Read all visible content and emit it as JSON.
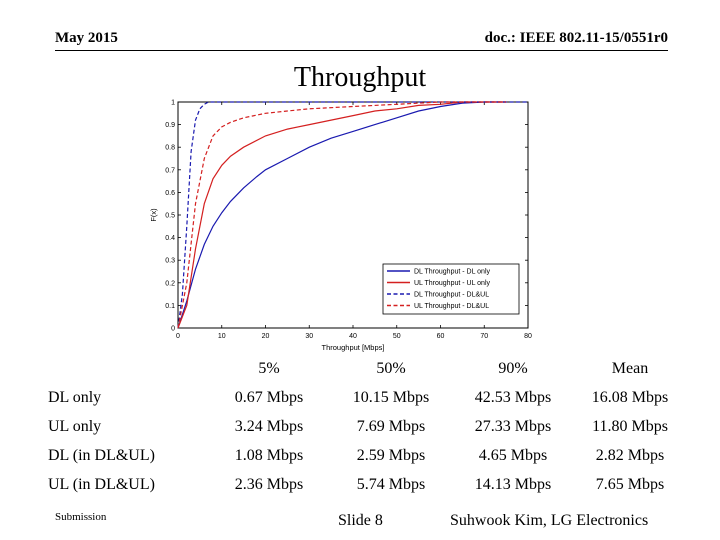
{
  "header": {
    "date": "May 2015",
    "doc": "doc.: IEEE 802.11-15/0551r0"
  },
  "title": "Throughput",
  "chart_data": {
    "type": "line",
    "xlabel": "Throughput [Mbps]",
    "ylabel": "F(x)",
    "xlim": [
      0,
      80
    ],
    "ylim": [
      0,
      1
    ],
    "xticks": [
      "0",
      "10",
      "20",
      "30",
      "40",
      "50",
      "60",
      "70",
      "80"
    ],
    "yticks": [
      "0",
      "0.1",
      "0.2",
      "0.3",
      "0.4",
      "0.5",
      "0.6",
      "0.7",
      "0.8",
      "0.9",
      "1"
    ],
    "grid": false,
    "legend_position": "bottom-right",
    "series": [
      {
        "name": "DL Throughput - DL only",
        "color": "#1a1ab0",
        "dash": "solid",
        "x": [
          0,
          2,
          4,
          6,
          8,
          10,
          12,
          15,
          18,
          20,
          25,
          30,
          35,
          40,
          45,
          50,
          55,
          60,
          65,
          70,
          75
        ],
        "y": [
          0,
          0.12,
          0.26,
          0.37,
          0.45,
          0.51,
          0.56,
          0.62,
          0.67,
          0.7,
          0.75,
          0.8,
          0.84,
          0.87,
          0.9,
          0.93,
          0.96,
          0.98,
          0.995,
          1,
          1
        ]
      },
      {
        "name": "UL Throughput - UL only",
        "color": "#d42020",
        "dash": "solid",
        "x": [
          0,
          2,
          4,
          6,
          8,
          10,
          12,
          15,
          20,
          25,
          30,
          35,
          40,
          45,
          50,
          55,
          60,
          65,
          70,
          75
        ],
        "y": [
          0,
          0.1,
          0.35,
          0.55,
          0.66,
          0.72,
          0.76,
          0.8,
          0.85,
          0.88,
          0.9,
          0.92,
          0.94,
          0.96,
          0.97,
          0.985,
          0.99,
          1,
          1,
          1
        ]
      },
      {
        "name": "DL Throughput - DL&UL",
        "color": "#1a1ab0",
        "dash": "dash",
        "x": [
          0,
          1,
          2,
          3,
          4,
          5,
          6,
          7,
          8,
          10,
          80
        ],
        "y": [
          0,
          0.15,
          0.45,
          0.78,
          0.92,
          0.97,
          0.99,
          1,
          1,
          1,
          1
        ]
      },
      {
        "name": "UL Throughput - DL&UL",
        "color": "#d42020",
        "dash": "dash",
        "x": [
          0,
          2,
          4,
          6,
          8,
          10,
          12,
          15,
          20,
          25,
          30,
          40,
          50,
          60,
          70,
          75
        ],
        "y": [
          0,
          0.2,
          0.55,
          0.75,
          0.85,
          0.89,
          0.91,
          0.93,
          0.95,
          0.96,
          0.97,
          0.98,
          0.99,
          1,
          1,
          1
        ]
      }
    ]
  },
  "table": {
    "headers": [
      "",
      "5%",
      "50%",
      "90%",
      "Mean"
    ],
    "rows": [
      {
        "label": "DL only",
        "values": [
          "0.67 Mbps",
          "10.15 Mbps",
          "42.53 Mbps",
          "16.08 Mbps"
        ]
      },
      {
        "label": "UL only",
        "values": [
          "3.24 Mbps",
          "7.69 Mbps",
          "27.33 Mbps",
          "11.80 Mbps"
        ]
      },
      {
        "label": "DL (in DL&UL)",
        "values": [
          "1.08 Mbps",
          "2.59 Mbps",
          "4.65 Mbps",
          "2.82 Mbps"
        ]
      },
      {
        "label": "UL (in DL&UL)",
        "values": [
          "2.36 Mbps",
          "5.74 Mbps",
          "14.13 Mbps",
          "7.65 Mbps"
        ]
      }
    ]
  },
  "footer": {
    "submission": "Submission",
    "slide": "Slide 8",
    "author": "Suhwook Kim, LG Electronics"
  }
}
